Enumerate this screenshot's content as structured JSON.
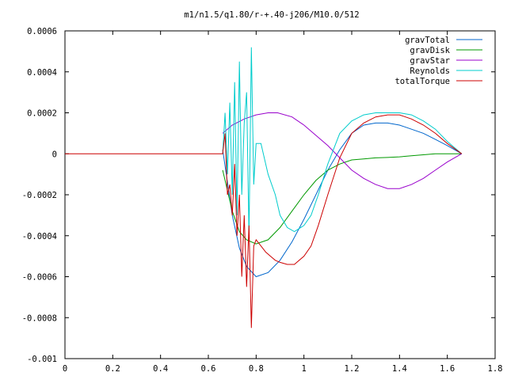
{
  "chart_data": {
    "type": "line",
    "title": "m1/n1.5/q1.80/r-+.40-j206/M10.0/512",
    "xlabel": "",
    "ylabel": "",
    "xlim": [
      0,
      1.8
    ],
    "ylim": [
      -0.001,
      0.0006
    ],
    "x_ticks": [
      "0",
      "0.2",
      "0.4",
      "0.6",
      "0.8",
      "1",
      "1.2",
      "1.4",
      "1.6",
      "1.8"
    ],
    "x_tick_values": [
      0,
      0.2,
      0.4,
      0.6,
      0.8,
      1.0,
      1.2,
      1.4,
      1.6,
      1.8
    ],
    "y_ticks": [
      "0.0006",
      "0.0004",
      "0.0002",
      "0",
      "-0.0002",
      "-0.0004",
      "-0.0006",
      "-0.0008",
      "-0.001"
    ],
    "y_tick_values": [
      0.0006,
      0.0004,
      0.0002,
      0,
      -0.0002,
      -0.0004,
      -0.0006,
      -0.0008,
      -0.001
    ],
    "grid": false,
    "legend_position": "top-right",
    "series": [
      {
        "name": "gravTotal",
        "color": "#0066cc",
        "x": [
          0.66,
          0.7,
          0.73,
          0.76,
          0.8,
          0.85,
          0.9,
          0.95,
          1.0,
          1.05,
          1.1,
          1.15,
          1.2,
          1.25,
          1.3,
          1.35,
          1.4,
          1.45,
          1.5,
          1.55,
          1.6,
          1.66
        ],
        "y": [
          2e-05,
          -0.0003,
          -0.00046,
          -0.00055,
          -0.0006,
          -0.00058,
          -0.00052,
          -0.00043,
          -0.00032,
          -0.0002,
          -8e-05,
          2e-05,
          0.0001,
          0.00014,
          0.00015,
          0.00015,
          0.00014,
          0.00012,
          0.0001,
          7e-05,
          4e-05,
          0.0
        ]
      },
      {
        "name": "gravDisk",
        "color": "#009900",
        "x": [
          0.66,
          0.7,
          0.73,
          0.76,
          0.8,
          0.85,
          0.9,
          0.95,
          1.0,
          1.05,
          1.1,
          1.15,
          1.2,
          1.25,
          1.3,
          1.35,
          1.4,
          1.45,
          1.5,
          1.55,
          1.6,
          1.66
        ],
        "y": [
          -8e-05,
          -0.00028,
          -0.00038,
          -0.00042,
          -0.00044,
          -0.00042,
          -0.00036,
          -0.00028,
          -0.0002,
          -0.00013,
          -8e-05,
          -5e-05,
          -3e-05,
          -2.5e-05,
          -2e-05,
          -1.8e-05,
          -1.5e-05,
          -1e-05,
          -5e-06,
          0.0,
          0.0,
          0.0
        ]
      },
      {
        "name": "gravStar",
        "color": "#9900cc",
        "x": [
          0.66,
          0.7,
          0.75,
          0.8,
          0.85,
          0.89,
          0.95,
          1.0,
          1.05,
          1.1,
          1.15,
          1.2,
          1.25,
          1.3,
          1.35,
          1.4,
          1.45,
          1.5,
          1.55,
          1.6,
          1.66
        ],
        "y": [
          0.0001,
          0.00014,
          0.00017,
          0.00019,
          0.0002,
          0.0002,
          0.00018,
          0.00014,
          9e-05,
          4e-05,
          -2e-05,
          -8e-05,
          -0.00012,
          -0.00015,
          -0.00017,
          -0.00017,
          -0.00015,
          -0.00012,
          -8e-05,
          -4e-05,
          0.0
        ]
      },
      {
        "name": "Reynolds",
        "color": "#00cccc",
        "x": [
          0.66,
          0.67,
          0.68,
          0.69,
          0.7,
          0.71,
          0.72,
          0.73,
          0.74,
          0.75,
          0.76,
          0.77,
          0.78,
          0.79,
          0.8,
          0.82,
          0.85,
          0.88,
          0.9,
          0.93,
          0.96,
          1.0,
          1.03,
          1.06,
          1.1,
          1.15,
          1.2,
          1.25,
          1.3,
          1.35,
          1.4,
          1.45,
          1.5,
          1.55,
          1.6,
          1.66
        ],
        "y": [
          0.0,
          0.0002,
          -0.0001,
          0.00025,
          -0.0002,
          0.00035,
          -0.0003,
          0.00045,
          -0.0002,
          0.00015,
          0.0003,
          -0.0004,
          0.00052,
          -0.00015,
          5e-05,
          5e-05,
          -0.0001,
          -0.0002,
          -0.0003,
          -0.00036,
          -0.00038,
          -0.00035,
          -0.0003,
          -0.0002,
          -5e-05,
          0.0001,
          0.00016,
          0.00019,
          0.0002,
          0.0002,
          0.0002,
          0.00019,
          0.00016,
          0.00012,
          6e-05,
          0.0
        ]
      },
      {
        "name": "totalTorque",
        "color": "#cc0000",
        "x": [
          0,
          0.5,
          0.66,
          0.67,
          0.68,
          0.69,
          0.7,
          0.71,
          0.72,
          0.73,
          0.74,
          0.75,
          0.76,
          0.77,
          0.78,
          0.79,
          0.8,
          0.82,
          0.84,
          0.86,
          0.88,
          0.9,
          0.93,
          0.96,
          1.0,
          1.03,
          1.06,
          1.1,
          1.15,
          1.2,
          1.25,
          1.3,
          1.35,
          1.4,
          1.45,
          1.5,
          1.55,
          1.6,
          1.66
        ],
        "y": [
          0,
          0,
          0.0,
          0.0001,
          -0.0002,
          -0.00015,
          -0.0003,
          -5e-05,
          -0.0004,
          -0.0002,
          -0.0006,
          -0.0003,
          -0.00065,
          -0.00035,
          -0.00085,
          -0.00045,
          -0.00042,
          -0.00045,
          -0.00048,
          -0.0005,
          -0.00052,
          -0.00053,
          -0.00054,
          -0.00054,
          -0.0005,
          -0.00045,
          -0.00035,
          -0.0002,
          -2e-05,
          0.0001,
          0.00015,
          0.00018,
          0.00019,
          0.00019,
          0.00017,
          0.00014,
          0.0001,
          5e-05,
          0.0
        ]
      }
    ]
  }
}
